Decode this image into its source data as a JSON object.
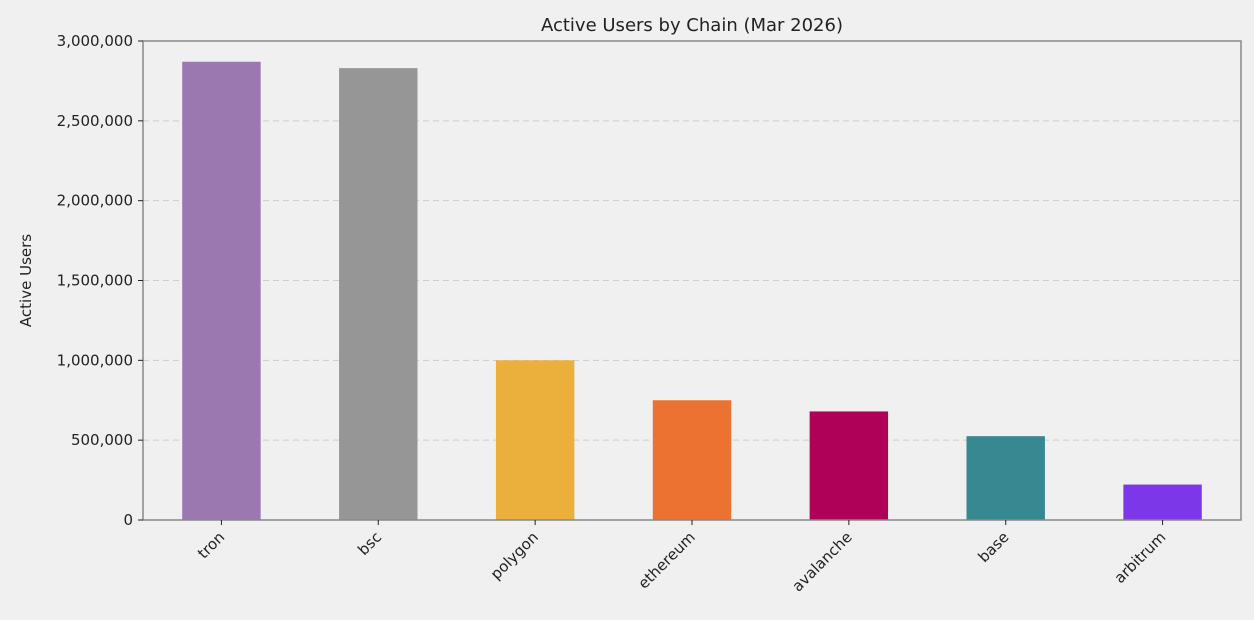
{
  "chart_data": {
    "type": "bar",
    "title": "Active Users by Chain (Mar 2026)",
    "xlabel": "",
    "ylabel": "Active Users",
    "categories": [
      "tron",
      "bsc",
      "polygon",
      "ethereum",
      "avalanche",
      "base",
      "arbitrum"
    ],
    "values": [
      2870000,
      2830000,
      1000000,
      750000,
      680000,
      525000,
      222000
    ],
    "colors": [
      "#9b78b0",
      "#969696",
      "#ebaf3c",
      "#eb7230",
      "#b00158",
      "#378890",
      "#7c38e8"
    ],
    "ylim": [
      0,
      3000000
    ],
    "yticks": [
      0,
      500000,
      1000000,
      1500000,
      2000000,
      2500000,
      3000000
    ],
    "ytick_labels": [
      "0",
      "500,000",
      "1,000,000",
      "1,500,000",
      "2,000,000",
      "2,500,000",
      "3,000,000"
    ],
    "grid": "y-dashed",
    "legend": "none"
  },
  "style": {
    "figure_bg": "#f0f0f0",
    "axes_bg": "#f0f0f0",
    "frame_color": "#888888",
    "grid_color": "#cccccc",
    "text_color": "#222222"
  }
}
